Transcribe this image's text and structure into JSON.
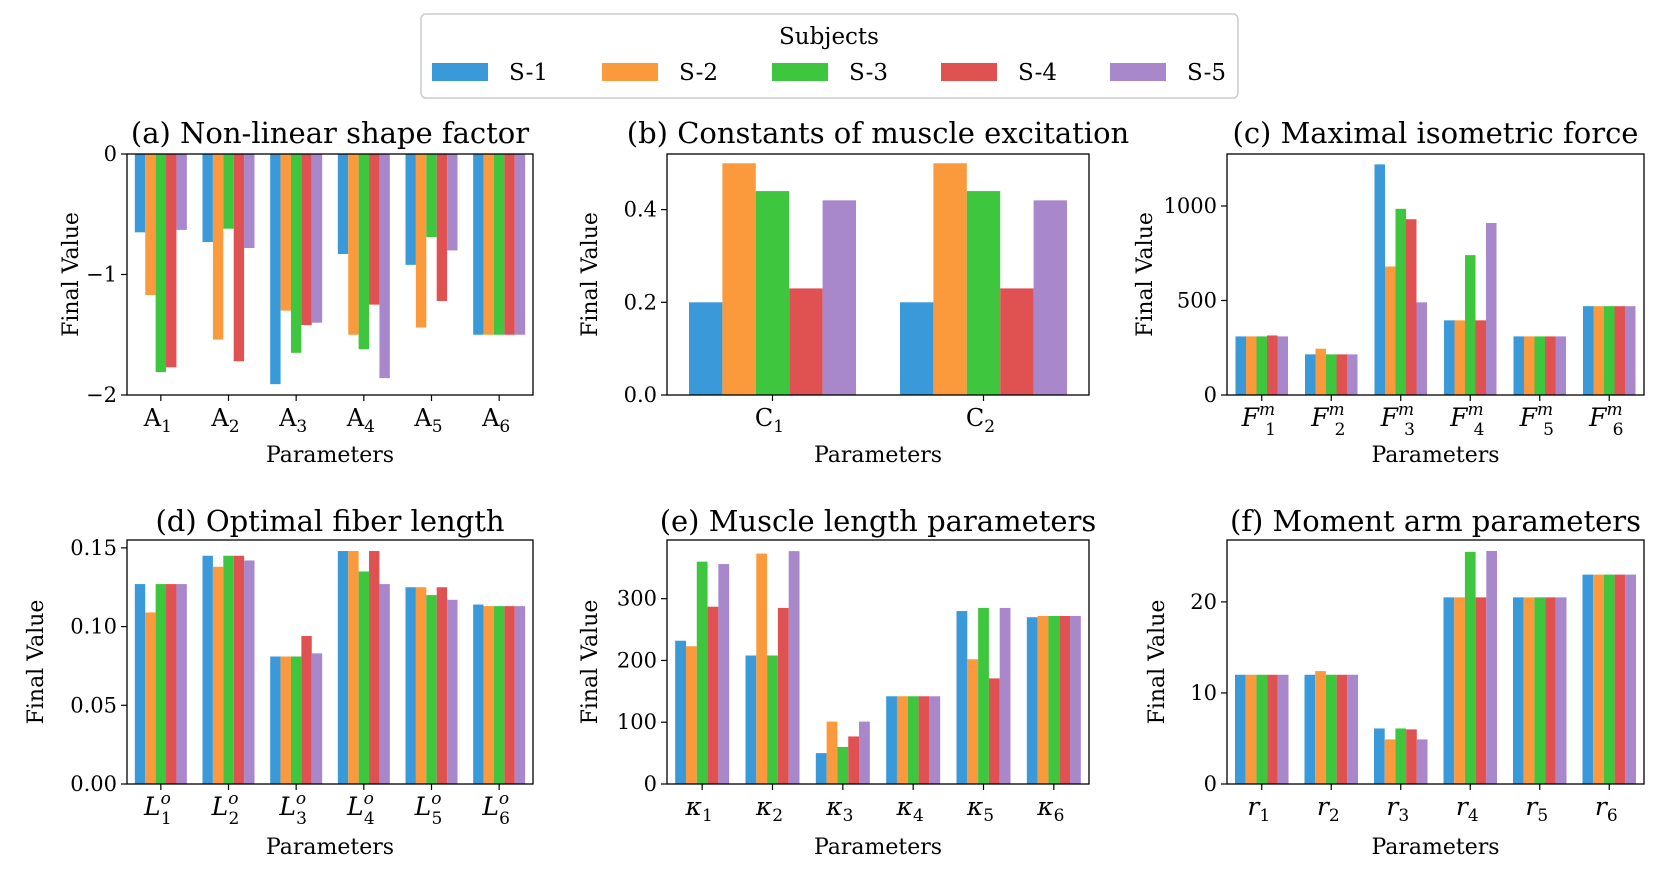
{
  "legend": {
    "title": "Subjects",
    "entries": [
      "S-1",
      "S-2",
      "S-3",
      "S-4",
      "S-5"
    ],
    "colors": [
      "#3a9ad9",
      "#fb9a3c",
      "#3ec63e",
      "#e05252",
      "#a987cb"
    ]
  },
  "chart_data": [
    {
      "type": "bar",
      "title": "(a) Non-linear shape factor",
      "xlabel": "Parameters",
      "ylabel": "Final Value",
      "ylim": [
        -2,
        0
      ],
      "yticks": [
        0,
        -1,
        -2
      ],
      "ytick_labels": [
        "0",
        "−1",
        "−2"
      ],
      "categories": [
        {
          "base": "A",
          "sub": "1",
          "style": "roman"
        },
        {
          "base": "A",
          "sub": "2",
          "style": "roman"
        },
        {
          "base": "A",
          "sub": "3",
          "style": "roman"
        },
        {
          "base": "A",
          "sub": "4",
          "style": "roman"
        },
        {
          "base": "A",
          "sub": "5",
          "style": "roman"
        },
        {
          "base": "A",
          "sub": "6",
          "style": "roman"
        }
      ],
      "series": [
        {
          "name": "S-1",
          "values": [
            -0.65,
            -0.73,
            -1.91,
            -0.83,
            -0.92,
            -1.5
          ]
        },
        {
          "name": "S-2",
          "values": [
            -1.17,
            -1.54,
            -1.3,
            -1.5,
            -1.44,
            -1.5
          ]
        },
        {
          "name": "S-3",
          "values": [
            -1.81,
            -0.62,
            -1.65,
            -1.62,
            -0.69,
            -1.5
          ]
        },
        {
          "name": "S-4",
          "values": [
            -1.77,
            -1.72,
            -1.42,
            -1.25,
            -1.22,
            -1.5
          ]
        },
        {
          "name": "S-5",
          "values": [
            -0.63,
            -0.78,
            -1.4,
            -1.86,
            -0.8,
            -1.5
          ]
        }
      ]
    },
    {
      "type": "bar",
      "title": "(b) Constants of muscle excitation",
      "xlabel": "Parameters",
      "ylabel": "Final Value",
      "ylim": [
        0,
        0.52
      ],
      "yticks": [
        0,
        0.2,
        0.4
      ],
      "ytick_labels": [
        "0.0",
        "0.2",
        "0.4"
      ],
      "categories": [
        {
          "base": "C",
          "sub": "1",
          "style": "roman"
        },
        {
          "base": "C",
          "sub": "2",
          "style": "roman"
        }
      ],
      "series": [
        {
          "name": "S-1",
          "values": [
            0.2,
            0.2
          ]
        },
        {
          "name": "S-2",
          "values": [
            0.5,
            0.5
          ]
        },
        {
          "name": "S-3",
          "values": [
            0.44,
            0.44
          ]
        },
        {
          "name": "S-4",
          "values": [
            0.23,
            0.23
          ]
        },
        {
          "name": "S-5",
          "values": [
            0.42,
            0.42
          ]
        }
      ]
    },
    {
      "type": "bar",
      "title": "(c) Maximal isometric force",
      "xlabel": "Parameters",
      "ylabel": "Final Value",
      "ylim": [
        0,
        1275
      ],
      "yticks": [
        0,
        500,
        1000
      ],
      "ytick_labels": [
        "0",
        "500",
        "1000"
      ],
      "categories": [
        {
          "base": "F",
          "sup": "m",
          "sub": "1",
          "style": "italic"
        },
        {
          "base": "F",
          "sup": "m",
          "sub": "2",
          "style": "italic"
        },
        {
          "base": "F",
          "sup": "m",
          "sub": "3",
          "style": "italic"
        },
        {
          "base": "F",
          "sup": "m",
          "sub": "4",
          "style": "italic"
        },
        {
          "base": "F",
          "sup": "m",
          "sub": "5",
          "style": "italic"
        },
        {
          "base": "F",
          "sup": "m",
          "sub": "6",
          "style": "italic"
        }
      ],
      "series": [
        {
          "name": "S-1",
          "values": [
            310,
            215,
            1220,
            395,
            310,
            470
          ]
        },
        {
          "name": "S-2",
          "values": [
            310,
            245,
            680,
            395,
            310,
            470
          ]
        },
        {
          "name": "S-3",
          "values": [
            310,
            215,
            985,
            740,
            310,
            470
          ]
        },
        {
          "name": "S-4",
          "values": [
            315,
            215,
            930,
            395,
            310,
            470
          ]
        },
        {
          "name": "S-5",
          "values": [
            310,
            215,
            490,
            910,
            310,
            470
          ]
        }
      ]
    },
    {
      "type": "bar",
      "title": "(d) Optimal fiber length",
      "xlabel": "Parameters",
      "ylabel": "Final Value",
      "ylim": [
        0,
        0.155
      ],
      "yticks": [
        0,
        0.05,
        0.1,
        0.15
      ],
      "ytick_labels": [
        "0.00",
        "0.05",
        "0.10",
        "0.15"
      ],
      "categories": [
        {
          "base": "L",
          "sup": "o",
          "sub": "1",
          "style": "italic"
        },
        {
          "base": "L",
          "sup": "o",
          "sub": "2",
          "style": "italic"
        },
        {
          "base": "L",
          "sup": "o",
          "sub": "3",
          "style": "italic"
        },
        {
          "base": "L",
          "sup": "o",
          "sub": "4",
          "style": "italic"
        },
        {
          "base": "L",
          "sup": "o",
          "sub": "5",
          "style": "italic"
        },
        {
          "base": "L",
          "sup": "o",
          "sub": "6",
          "style": "italic"
        }
      ],
      "series": [
        {
          "name": "S-1",
          "values": [
            0.127,
            0.145,
            0.081,
            0.148,
            0.125,
            0.114
          ]
        },
        {
          "name": "S-2",
          "values": [
            0.109,
            0.138,
            0.081,
            0.148,
            0.125,
            0.113
          ]
        },
        {
          "name": "S-3",
          "values": [
            0.127,
            0.145,
            0.081,
            0.135,
            0.12,
            0.113
          ]
        },
        {
          "name": "S-4",
          "values": [
            0.127,
            0.145,
            0.094,
            0.148,
            0.125,
            0.113
          ]
        },
        {
          "name": "S-5",
          "values": [
            0.127,
            0.142,
            0.083,
            0.127,
            0.117,
            0.113
          ]
        }
      ]
    },
    {
      "type": "bar",
      "title": "(e) Muscle length parameters",
      "xlabel": "Parameters",
      "ylabel": "Final Value",
      "ylim": [
        0,
        395
      ],
      "yticks": [
        0,
        100,
        200,
        300
      ],
      "ytick_labels": [
        "0",
        "100",
        "200",
        "300"
      ],
      "categories": [
        {
          "base": "κ",
          "sub": "1",
          "style": "italic"
        },
        {
          "base": "κ",
          "sub": "2",
          "style": "italic"
        },
        {
          "base": "κ",
          "sub": "3",
          "style": "italic"
        },
        {
          "base": "κ",
          "sub": "4",
          "style": "italic"
        },
        {
          "base": "κ",
          "sub": "5",
          "style": "italic"
        },
        {
          "base": "κ",
          "sub": "6",
          "style": "italic"
        }
      ],
      "series": [
        {
          "name": "S-1",
          "values": [
            232,
            208,
            50,
            142,
            280,
            270
          ]
        },
        {
          "name": "S-2",
          "values": [
            223,
            373,
            101,
            142,
            202,
            272
          ]
        },
        {
          "name": "S-3",
          "values": [
            360,
            208,
            60,
            142,
            285,
            272
          ]
        },
        {
          "name": "S-4",
          "values": [
            287,
            285,
            77,
            142,
            171,
            272
          ]
        },
        {
          "name": "S-5",
          "values": [
            356,
            377,
            101,
            142,
            285,
            272
          ]
        }
      ]
    },
    {
      "type": "bar",
      "title": "(f) Moment arm parameters",
      "xlabel": "Parameters",
      "ylabel": "Final Value",
      "ylim": [
        0,
        26.8
      ],
      "yticks": [
        0,
        10,
        20
      ],
      "ytick_labels": [
        "0",
        "10",
        "20"
      ],
      "categories": [
        {
          "base": "r",
          "sub": "1",
          "style": "italic"
        },
        {
          "base": "r",
          "sub": "2",
          "style": "italic"
        },
        {
          "base": "r",
          "sub": "3",
          "style": "italic"
        },
        {
          "base": "r",
          "sub": "4",
          "style": "italic"
        },
        {
          "base": "r",
          "sub": "5",
          "style": "italic"
        },
        {
          "base": "r",
          "sub": "6",
          "style": "italic"
        }
      ],
      "series": [
        {
          "name": "S-1",
          "values": [
            12.0,
            12.0,
            6.1,
            20.5,
            20.5,
            23.0
          ]
        },
        {
          "name": "S-2",
          "values": [
            12.0,
            12.4,
            4.9,
            20.5,
            20.5,
            23.0
          ]
        },
        {
          "name": "S-3",
          "values": [
            12.0,
            12.0,
            6.1,
            25.5,
            20.5,
            23.0
          ]
        },
        {
          "name": "S-4",
          "values": [
            12.0,
            12.0,
            6.0,
            20.5,
            20.5,
            23.0
          ]
        },
        {
          "name": "S-5",
          "values": [
            12.0,
            12.0,
            4.9,
            25.6,
            20.5,
            23.0
          ]
        }
      ]
    }
  ]
}
